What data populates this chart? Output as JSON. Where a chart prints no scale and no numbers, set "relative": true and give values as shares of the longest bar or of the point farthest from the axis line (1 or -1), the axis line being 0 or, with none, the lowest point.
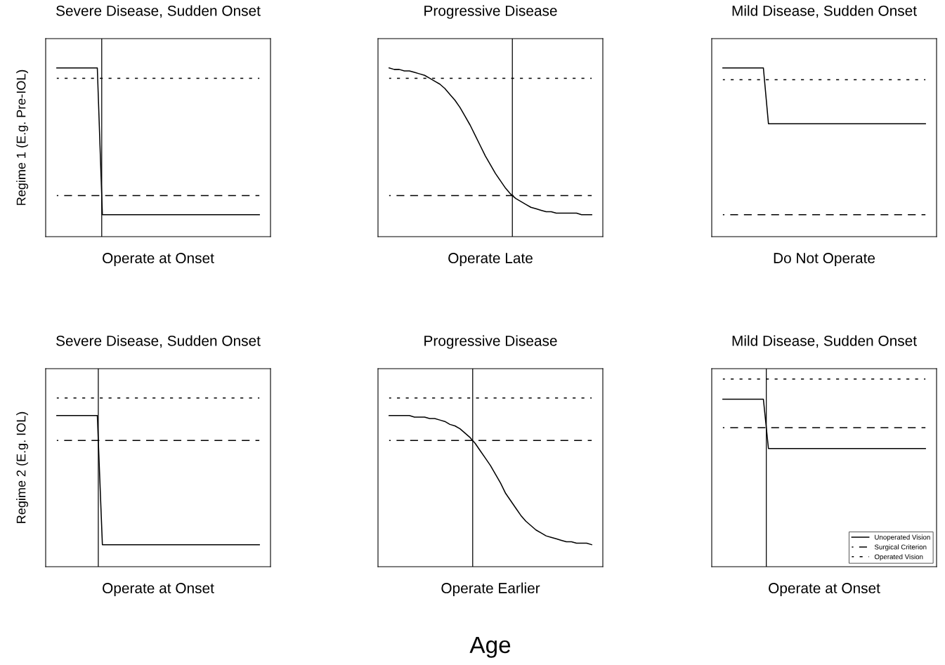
{
  "chart_data": [
    {
      "type": "line",
      "title": "Severe Disease, Sudden Onset",
      "xlabel": "Operate at Onset",
      "ylabel": "Regime 1 (E.g. Pre-IOL)",
      "relative": true,
      "legend": false,
      "marker": "none",
      "categories": [
        null,
        null,
        null,
        null,
        null,
        null,
        null,
        null,
        null,
        null,
        null,
        null,
        null,
        null,
        null,
        null,
        null,
        null,
        null,
        null,
        null,
        null,
        null,
        null,
        null,
        null,
        null,
        null,
        null,
        null,
        null,
        null,
        null,
        null,
        null,
        null,
        null,
        null,
        null,
        null,
        null
      ],
      "series": [
        {
          "color": "#000000",
          "line_style": "solid",
          "values": [
            1,
            1,
            1,
            1,
            1,
            1,
            1,
            1,
            1,
            0,
            0,
            0,
            0,
            0,
            0,
            0,
            0,
            0,
            0,
            0,
            0,
            0,
            0,
            0,
            0,
            0,
            0,
            0,
            0,
            0,
            0,
            0,
            0,
            0,
            0,
            0,
            0,
            0,
            0,
            0,
            0
          ]
        },
        {
          "color": "#000000",
          "line_style": "dashed",
          "values": [
            0.13,
            0.13,
            0.13,
            0.13,
            0.13,
            0.13,
            0.13,
            0.13,
            0.13,
            0.13,
            0.13,
            0.13,
            0.13,
            0.13,
            0.13,
            0.13,
            0.13,
            0.13,
            0.13,
            0.13,
            0.13,
            0.13,
            0.13,
            0.13,
            0.13,
            0.13,
            0.13,
            0.13,
            0.13,
            0.13,
            0.13,
            0.13,
            0.13,
            0.13,
            0.13,
            0.13,
            0.13,
            0.13,
            0.13,
            0.13,
            0.13
          ]
        },
        {
          "color": "#000000",
          "line_style": "dotted",
          "values": [
            0.93,
            0.93,
            0.93,
            0.93,
            0.93,
            0.93,
            0.93,
            0.93,
            0.93,
            0.93,
            0.93,
            0.93,
            0.93,
            0.93,
            0.93,
            0.93,
            0.93,
            0.93,
            0.93,
            0.93,
            0.93,
            0.93,
            0.93,
            0.93,
            0.93,
            0.93,
            0.93,
            0.93,
            0.93,
            0.93,
            0.93,
            0.93,
            0.93,
            0.93,
            0.93,
            0.93,
            0.93,
            0.93,
            0.93,
            0.93,
            0.93
          ]
        }
      ]
    },
    {
      "type": "line",
      "title": "Progressive Disease",
      "xlabel": "Operate Late",
      "relative": true,
      "legend": false,
      "marker": "none",
      "categories": [
        null,
        null,
        null,
        null,
        null,
        null,
        null,
        null,
        null,
        null,
        null,
        null,
        null,
        null,
        null,
        null,
        null,
        null,
        null,
        null,
        null,
        null,
        null,
        null,
        null,
        null,
        null,
        null,
        null,
        null,
        null,
        null,
        null,
        null,
        null,
        null,
        null,
        null,
        null,
        null,
        null
      ],
      "series": [
        {
          "color": "#000000",
          "line_style": "solid",
          "values": [
            1,
            0.99,
            0.99,
            0.98,
            0.98,
            0.97,
            0.96,
            0.95,
            0.93,
            0.91,
            0.89,
            0.86,
            0.82,
            0.78,
            0.73,
            0.67,
            0.61,
            0.54,
            0.47,
            0.4,
            0.34,
            0.28,
            0.23,
            0.18,
            0.14,
            0.11,
            0.09,
            0.07,
            0.05,
            0.04,
            0.03,
            0.02,
            0.02,
            0.01,
            0.01,
            0.01,
            0.01,
            0.01,
            0,
            0,
            0
          ]
        },
        {
          "color": "#000000",
          "line_style": "dashed",
          "values": [
            0.13,
            0.13,
            0.13,
            0.13,
            0.13,
            0.13,
            0.13,
            0.13,
            0.13,
            0.13,
            0.13,
            0.13,
            0.13,
            0.13,
            0.13,
            0.13,
            0.13,
            0.13,
            0.13,
            0.13,
            0.13,
            0.13,
            0.13,
            0.13,
            0.13,
            0.13,
            0.13,
            0.13,
            0.13,
            0.13,
            0.13,
            0.13,
            0.13,
            0.13,
            0.13,
            0.13,
            0.13,
            0.13,
            0.13,
            0.13,
            0.13
          ]
        },
        {
          "color": "#000000",
          "line_style": "dotted",
          "values": [
            0.93,
            0.93,
            0.93,
            0.93,
            0.93,
            0.93,
            0.93,
            0.93,
            0.93,
            0.93,
            0.93,
            0.93,
            0.93,
            0.93,
            0.93,
            0.93,
            0.93,
            0.93,
            0.93,
            0.93,
            0.93,
            0.93,
            0.93,
            0.93,
            0.93,
            0.93,
            0.93,
            0.93,
            0.93,
            0.93,
            0.93,
            0.93,
            0.93,
            0.93,
            0.93,
            0.93,
            0.93,
            0.93,
            0.93,
            0.93,
            0.93
          ]
        }
      ]
    },
    {
      "type": "line",
      "title": "Mild Disease, Sudden Onset",
      "xlabel": "Do Not Operate",
      "relative": true,
      "legend": false,
      "marker": "none",
      "categories": [
        null,
        null,
        null,
        null,
        null,
        null,
        null,
        null,
        null,
        null,
        null,
        null,
        null,
        null,
        null,
        null,
        null,
        null,
        null,
        null,
        null,
        null,
        null,
        null,
        null,
        null,
        null,
        null,
        null,
        null,
        null,
        null,
        null,
        null,
        null,
        null,
        null,
        null,
        null,
        null,
        null
      ],
      "series": [
        {
          "color": "#000000",
          "line_style": "solid",
          "values": [
            1,
            1,
            1,
            1,
            1,
            1,
            1,
            1,
            1,
            0.62,
            0.62,
            0.62,
            0.62,
            0.62,
            0.62,
            0.62,
            0.62,
            0.62,
            0.62,
            0.62,
            0.62,
            0.62,
            0.62,
            0.62,
            0.62,
            0.62,
            0.62,
            0.62,
            0.62,
            0.62,
            0.62,
            0.62,
            0.62,
            0.62,
            0.62,
            0.62,
            0.62,
            0.62,
            0.62,
            0.62,
            0.62
          ]
        },
        {
          "color": "#000000",
          "line_style": "dashed",
          "values": [
            0,
            0,
            0,
            0,
            0,
            0,
            0,
            0,
            0,
            0,
            0,
            0,
            0,
            0,
            0,
            0,
            0,
            0,
            0,
            0,
            0,
            0,
            0,
            0,
            0,
            0,
            0,
            0,
            0,
            0,
            0,
            0,
            0,
            0,
            0,
            0,
            0,
            0,
            0,
            0,
            0
          ]
        },
        {
          "color": "#000000",
          "line_style": "dotted",
          "values": [
            0.92,
            0.92,
            0.92,
            0.92,
            0.92,
            0.92,
            0.92,
            0.92,
            0.92,
            0.92,
            0.92,
            0.92,
            0.92,
            0.92,
            0.92,
            0.92,
            0.92,
            0.92,
            0.92,
            0.92,
            0.92,
            0.92,
            0.92,
            0.92,
            0.92,
            0.92,
            0.92,
            0.92,
            0.92,
            0.92,
            0.92,
            0.92,
            0.92,
            0.92,
            0.92,
            0.92,
            0.92,
            0.92,
            0.92,
            0.92,
            0.92
          ]
        }
      ]
    },
    {
      "type": "line",
      "title": "Severe Disease, Sudden Onset",
      "xlabel": "Operate at Onset",
      "ylabel": "Regime 2 (E.g. IOL)",
      "relative": true,
      "legend": false,
      "marker": "none",
      "categories": [
        null,
        null,
        null,
        null,
        null,
        null,
        null,
        null,
        null,
        null,
        null,
        null,
        null,
        null,
        null,
        null,
        null,
        null,
        null,
        null,
        null,
        null,
        null,
        null,
        null,
        null,
        null,
        null,
        null,
        null,
        null,
        null,
        null,
        null,
        null,
        null,
        null,
        null,
        null,
        null,
        null
      ],
      "series": [
        {
          "color": "#000000",
          "line_style": "solid",
          "values": [
            0.88,
            0.88,
            0.88,
            0.88,
            0.88,
            0.88,
            0.88,
            0.88,
            0.88,
            0,
            0,
            0,
            0,
            0,
            0,
            0,
            0,
            0,
            0,
            0,
            0,
            0,
            0,
            0,
            0,
            0,
            0,
            0,
            0,
            0,
            0,
            0,
            0,
            0,
            0,
            0,
            0,
            0,
            0,
            0,
            0
          ]
        },
        {
          "color": "#000000",
          "line_style": "dashed",
          "values": [
            0.71,
            0.71,
            0.71,
            0.71,
            0.71,
            0.71,
            0.71,
            0.71,
            0.71,
            0.71,
            0.71,
            0.71,
            0.71,
            0.71,
            0.71,
            0.71,
            0.71,
            0.71,
            0.71,
            0.71,
            0.71,
            0.71,
            0.71,
            0.71,
            0.71,
            0.71,
            0.71,
            0.71,
            0.71,
            0.71,
            0.71,
            0.71,
            0.71,
            0.71,
            0.71,
            0.71,
            0.71,
            0.71,
            0.71,
            0.71,
            0.71
          ]
        },
        {
          "color": "#000000",
          "line_style": "dotted",
          "values": [
            1,
            1,
            1,
            1,
            1,
            1,
            1,
            1,
            1,
            1,
            1,
            1,
            1,
            1,
            1,
            1,
            1,
            1,
            1,
            1,
            1,
            1,
            1,
            1,
            1,
            1,
            1,
            1,
            1,
            1,
            1,
            1,
            1,
            1,
            1,
            1,
            1,
            1,
            1,
            1,
            1
          ]
        }
      ]
    },
    {
      "type": "line",
      "title": "Progressive Disease",
      "xlabel": "Operate Earlier",
      "relative": true,
      "legend": false,
      "marker": "none",
      "annotations": [
        "Age"
      ],
      "categories": [
        null,
        null,
        null,
        null,
        null,
        null,
        null,
        null,
        null,
        null,
        null,
        null,
        null,
        null,
        null,
        null,
        null,
        null,
        null,
        null,
        null,
        null,
        null,
        null,
        null,
        null,
        null,
        null,
        null,
        null,
        null,
        null,
        null,
        null,
        null,
        null,
        null,
        null,
        null,
        null,
        null
      ],
      "series": [
        {
          "color": "#000000",
          "line_style": "solid",
          "values": [
            0.88,
            0.88,
            0.88,
            0.88,
            0.88,
            0.87,
            0.87,
            0.87,
            0.86,
            0.86,
            0.85,
            0.84,
            0.82,
            0.81,
            0.79,
            0.76,
            0.73,
            0.69,
            0.64,
            0.59,
            0.54,
            0.48,
            0.42,
            0.35,
            0.3,
            0.25,
            0.2,
            0.16,
            0.13,
            0.1,
            0.08,
            0.06,
            0.05,
            0.04,
            0.03,
            0.02,
            0.02,
            0.01,
            0.01,
            0.01,
            0
          ]
        },
        {
          "color": "#000000",
          "line_style": "dashed",
          "values": [
            0.71,
            0.71,
            0.71,
            0.71,
            0.71,
            0.71,
            0.71,
            0.71,
            0.71,
            0.71,
            0.71,
            0.71,
            0.71,
            0.71,
            0.71,
            0.71,
            0.71,
            0.71,
            0.71,
            0.71,
            0.71,
            0.71,
            0.71,
            0.71,
            0.71,
            0.71,
            0.71,
            0.71,
            0.71,
            0.71,
            0.71,
            0.71,
            0.71,
            0.71,
            0.71,
            0.71,
            0.71,
            0.71,
            0.71,
            0.71,
            0.71
          ]
        },
        {
          "color": "#000000",
          "line_style": "dotted",
          "values": [
            1,
            1,
            1,
            1,
            1,
            1,
            1,
            1,
            1,
            1,
            1,
            1,
            1,
            1,
            1,
            1,
            1,
            1,
            1,
            1,
            1,
            1,
            1,
            1,
            1,
            1,
            1,
            1,
            1,
            1,
            1,
            1,
            1,
            1,
            1,
            1,
            1,
            1,
            1,
            1,
            1
          ]
        }
      ]
    },
    {
      "type": "line",
      "title": "Mild Disease, Sudden Onset",
      "xlabel": "Operate at Onset",
      "relative": true,
      "legend": "bottom right",
      "marker": "none",
      "categories": [
        null,
        null,
        null,
        null,
        null,
        null,
        null,
        null,
        null,
        null,
        null,
        null,
        null,
        null,
        null,
        null,
        null,
        null,
        null,
        null,
        null,
        null,
        null,
        null,
        null,
        null,
        null,
        null,
        null,
        null,
        null,
        null,
        null,
        null,
        null,
        null,
        null,
        null,
        null,
        null,
        null
      ],
      "series": [
        {
          "name": "Unoperated Vision",
          "color": "#000000",
          "line_style": "solid",
          "values": [
            0.71,
            0.71,
            0.71,
            0.71,
            0.71,
            0.71,
            0.71,
            0.71,
            0.71,
            0,
            0,
            0,
            0,
            0,
            0,
            0,
            0,
            0,
            0,
            0,
            0,
            0,
            0,
            0,
            0,
            0,
            0,
            0,
            0,
            0,
            0,
            0,
            0,
            0,
            0,
            0,
            0,
            0,
            0,
            0,
            0
          ]
        },
        {
          "name": "Surgical Criterion",
          "color": "#000000",
          "line_style": "dashed",
          "values": [
            0.3,
            0.3,
            0.3,
            0.3,
            0.3,
            0.3,
            0.3,
            0.3,
            0.3,
            0.3,
            0.3,
            0.3,
            0.3,
            0.3,
            0.3,
            0.3,
            0.3,
            0.3,
            0.3,
            0.3,
            0.3,
            0.3,
            0.3,
            0.3,
            0.3,
            0.3,
            0.3,
            0.3,
            0.3,
            0.3,
            0.3,
            0.3,
            0.3,
            0.3,
            0.3,
            0.3,
            0.3,
            0.3,
            0.3,
            0.3,
            0.3
          ]
        },
        {
          "name": "Operated Vision",
          "color": "#000000",
          "line_style": "dotted",
          "values": [
            1,
            1,
            1,
            1,
            1,
            1,
            1,
            1,
            1,
            1,
            1,
            1,
            1,
            1,
            1,
            1,
            1,
            1,
            1,
            1,
            1,
            1,
            1,
            1,
            1,
            1,
            1,
            1,
            1,
            1,
            1,
            1,
            1,
            1,
            1,
            1,
            1,
            1,
            1,
            1,
            1
          ]
        }
      ]
    }
  ]
}
